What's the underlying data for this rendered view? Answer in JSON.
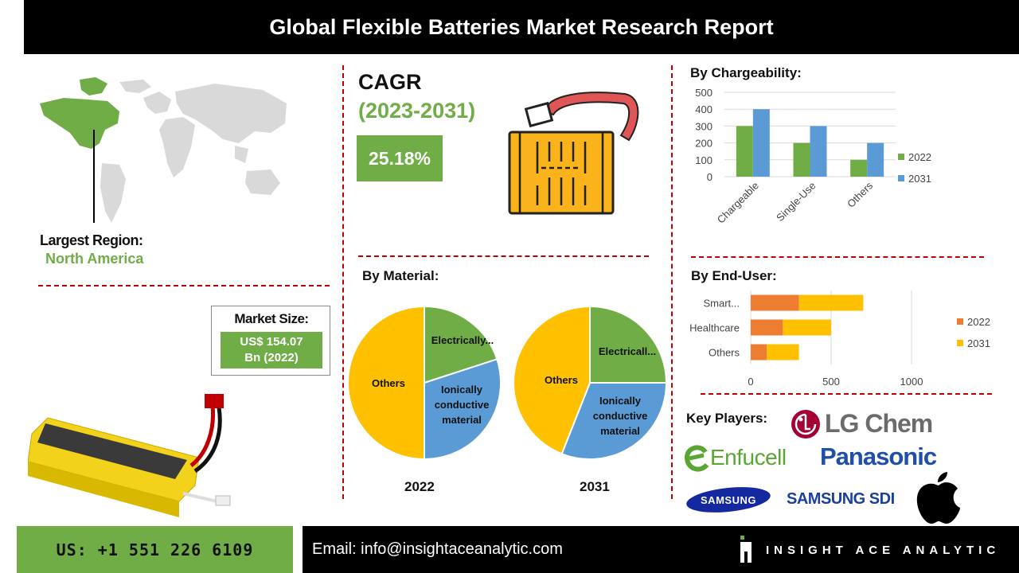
{
  "header": {
    "title": "Global Flexible Batteries Market Research Report"
  },
  "region": {
    "label": "Largest Region:",
    "value": "North America"
  },
  "market_size": {
    "title": "Market Size:",
    "value_line1": "US$ 154.07",
    "value_line2": "Bn (2022)"
  },
  "cagr": {
    "title": "CAGR",
    "period": "(2023-2031)",
    "value": "25.18%"
  },
  "colors": {
    "green": "#70ad47",
    "blue": "#5b9bd5",
    "orange": "#ed7d31",
    "yellow": "#ffc000",
    "red_divider": "#c00000"
  },
  "key_players": {
    "title": "Key Players:",
    "logos": [
      "LG Chem",
      "Enfucell",
      "Panasonic",
      "SAMSUNG",
      "SAMSUNG SDI",
      "apple-logo-icon"
    ]
  },
  "footer": {
    "phone": "US: +1 551 226 6109",
    "email": "Email: info@insightaceanalytic.com",
    "brand": "INSIGHT ACE ANALYTIC"
  },
  "chart_data": [
    {
      "type": "bar",
      "title": "By Chargeability:",
      "categories": [
        "Chargeable",
        "Single-Use",
        "Others"
      ],
      "series": [
        {
          "name": "2022",
          "values": [
            300,
            200,
            100
          ],
          "color": "#70ad47"
        },
        {
          "name": "2031",
          "values": [
            400,
            300,
            200
          ],
          "color": "#5b9bd5"
        }
      ],
      "ylim": [
        0,
        500
      ],
      "yticks": [
        0,
        100,
        200,
        300,
        400,
        500
      ],
      "grid": true,
      "legend": "right"
    },
    {
      "type": "bar",
      "orientation": "horizontal",
      "stacked": true,
      "title": "By End-User:",
      "categories": [
        "Smart...",
        "Healthcare",
        "Others"
      ],
      "series": [
        {
          "name": "2022",
          "values": [
            300,
            200,
            100
          ],
          "color": "#ed7d31"
        },
        {
          "name": "2031",
          "values": [
            400,
            300,
            200
          ],
          "color": "#ffc000"
        }
      ],
      "xlim": [
        0,
        1000
      ],
      "xticks": [
        0,
        500,
        1000
      ],
      "grid": true,
      "legend": "right"
    },
    {
      "type": "pie",
      "title": "By Material:",
      "label": "2022",
      "slices": [
        {
          "name": "Electrically...",
          "value": 20,
          "color": "#70ad47"
        },
        {
          "name": "Ionically conductive material",
          "value": 30,
          "color": "#5b9bd5"
        },
        {
          "name": "Others",
          "value": 50,
          "color": "#ffc000"
        }
      ]
    },
    {
      "type": "pie",
      "label": "2031",
      "slices": [
        {
          "name": "Electricall...",
          "value": 25,
          "color": "#70ad47"
        },
        {
          "name": "Ionically conductive material",
          "value": 31,
          "color": "#5b9bd5"
        },
        {
          "name": "Others",
          "value": 44,
          "color": "#ffc000"
        }
      ]
    }
  ]
}
